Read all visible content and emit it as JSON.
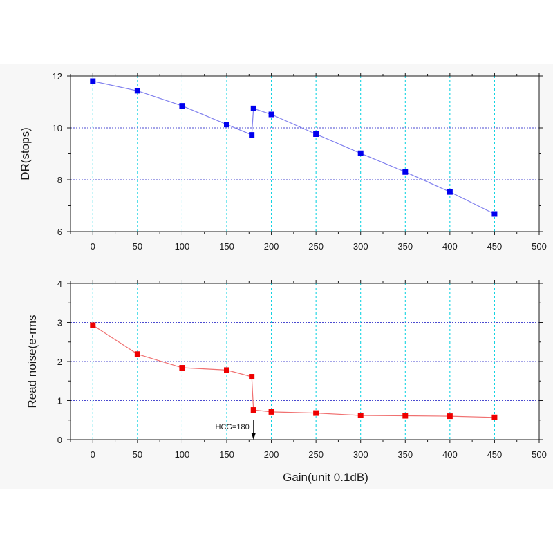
{
  "chart_data": [
    {
      "type": "line",
      "xlabel": "",
      "ylabel": "DR(stops)",
      "xlim": [
        -25,
        500
      ],
      "ylim": [
        6,
        12
      ],
      "xticks": [
        0,
        50,
        100,
        150,
        200,
        250,
        300,
        350,
        400,
        450,
        500
      ],
      "yticks": [
        6,
        8,
        10,
        12
      ],
      "grid": true,
      "series": [
        {
          "color": "#0000ee",
          "line_color": "#8080ee",
          "marker": "square",
          "x": [
            0,
            50,
            100,
            150,
            178,
            180,
            200,
            250,
            300,
            350,
            400,
            450
          ],
          "y": [
            11.8,
            11.43,
            10.85,
            10.13,
            9.73,
            10.75,
            10.52,
            9.76,
            9.02,
            8.3,
            7.53,
            6.68
          ]
        }
      ]
    },
    {
      "type": "line",
      "xlabel": "Gain(unit 0.1dB)",
      "ylabel": "Read noise(e-rms",
      "xlim": [
        -25,
        500
      ],
      "ylim": [
        0,
        4
      ],
      "xticks": [
        0,
        50,
        100,
        150,
        200,
        250,
        300,
        350,
        400,
        450,
        500
      ],
      "yticks": [
        0,
        1,
        2,
        3,
        4
      ],
      "grid": true,
      "series": [
        {
          "color": "#ee0000",
          "line_color": "#f07070",
          "marker": "square",
          "x": [
            0,
            50,
            100,
            150,
            178,
            180,
            200,
            250,
            300,
            350,
            400,
            450
          ],
          "y": [
            2.93,
            2.19,
            1.84,
            1.78,
            1.61,
            0.76,
            0.71,
            0.68,
            0.62,
            0.61,
            0.6,
            0.57
          ]
        }
      ],
      "annotations": [
        {
          "text": "HCG=180",
          "x": 180,
          "y": 0.05,
          "arrow": "down"
        }
      ]
    }
  ],
  "colors": {
    "grid_vertical": "#00d0e0",
    "grid_horizontal": "#4a4ad0",
    "axis": "#1a1a1a"
  }
}
